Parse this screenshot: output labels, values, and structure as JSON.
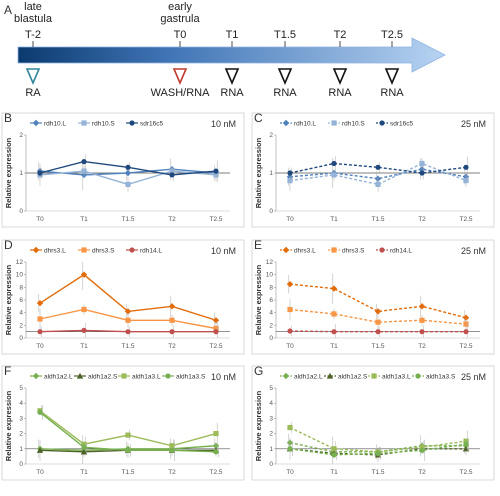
{
  "colors": {
    "blue": "#4f81bd",
    "blue_light": "#95b3d7",
    "blue_dark": "#1f497d",
    "orange": "#e26b0a",
    "orange_light": "#f79646",
    "orange_dark": "#c0504d",
    "green": "#77b050",
    "green_light": "#9bbb59",
    "green_dark": "#4f6228",
    "teal": "#31859c",
    "red": "#c0392b",
    "arrow": "#8db3e2"
  },
  "timeline": {
    "panel_letter": "A",
    "stages": [
      {
        "label": "late\nblastula",
        "time": "T-2"
      },
      {
        "label": "early\ngastrula",
        "time": "T0"
      },
      {
        "label": "",
        "time": "T1"
      },
      {
        "label": "",
        "time": "T1.5"
      },
      {
        "label": "",
        "time": "T2"
      },
      {
        "label": "",
        "time": "T2.5"
      }
    ],
    "treatments": [
      {
        "label": "RA",
        "at": "T-2",
        "icon": "teal-triangle-icon"
      },
      {
        "label": "WASH/RNA",
        "at": "T0",
        "icon": "red-triangle-icon"
      },
      {
        "label": "RNA",
        "at": "T1",
        "icon": "black-triangle-icon"
      },
      {
        "label": "RNA",
        "at": "T1.5",
        "icon": "black-triangle-icon"
      },
      {
        "label": "RNA",
        "at": "T2",
        "icon": "black-triangle-icon"
      },
      {
        "label": "RNA",
        "at": "T2.5",
        "icon": "black-triangle-icon"
      }
    ]
  },
  "chart_data": [
    {
      "panel": "B",
      "type": "line",
      "conc": "10 nM",
      "ylabel": "Relative expression",
      "ylim": [
        0,
        2
      ],
      "yticks": [
        0,
        1,
        2
      ],
      "categories": [
        "T0",
        "T1",
        "T1.5",
        "T2",
        "T2.5"
      ],
      "series": [
        {
          "name": "rdh10.L",
          "values": [
            1.05,
            0.95,
            1.0,
            1.1,
            1.0
          ],
          "color_key": "blue",
          "dash": false,
          "marker": "diamond"
        },
        {
          "name": "rdh10.S",
          "values": [
            0.95,
            1.05,
            0.7,
            1.05,
            0.95
          ],
          "color_key": "blue_light",
          "dash": false,
          "marker": "square"
        },
        {
          "name": "sdr16c5",
          "values": [
            1.0,
            1.3,
            1.15,
            0.95,
            1.05
          ],
          "color_key": "blue_dark",
          "dash": false,
          "marker": "circle"
        }
      ]
    },
    {
      "panel": "C",
      "type": "line",
      "conc": "25 nM",
      "ylabel": "Relative expression",
      "ylim": [
        0,
        2
      ],
      "yticks": [
        0,
        1,
        2
      ],
      "categories": [
        "T0",
        "T1",
        "T1.5",
        "T2",
        "T2.5"
      ],
      "series": [
        {
          "name": "rdh10.L",
          "values": [
            0.9,
            1.0,
            0.85,
            1.1,
            0.9
          ],
          "color_key": "blue",
          "dash": true,
          "marker": "diamond"
        },
        {
          "name": "rdh10.S",
          "values": [
            0.8,
            0.95,
            0.7,
            1.25,
            0.8
          ],
          "color_key": "blue_light",
          "dash": true,
          "marker": "square"
        },
        {
          "name": "sdr16c5",
          "values": [
            1.0,
            1.25,
            1.15,
            1.0,
            1.15
          ],
          "color_key": "blue_dark",
          "dash": true,
          "marker": "circle"
        }
      ]
    },
    {
      "panel": "D",
      "type": "line",
      "conc": "10 nM",
      "ylabel": "Relative expression",
      "ylim": [
        0,
        12
      ],
      "yticks": [
        0,
        2,
        4,
        6,
        8,
        10,
        12
      ],
      "categories": [
        "T0",
        "T1",
        "T1.5",
        "T2",
        "T2.5"
      ],
      "series": [
        {
          "name": "dhrs3.L",
          "values": [
            5.5,
            10.0,
            4.2,
            5.0,
            2.8
          ],
          "color_key": "orange",
          "dash": false,
          "marker": "diamond"
        },
        {
          "name": "dhrs3.S",
          "values": [
            3.0,
            4.5,
            2.8,
            2.8,
            1.5
          ],
          "color_key": "orange_light",
          "dash": false,
          "marker": "square"
        },
        {
          "name": "rdh14.L",
          "values": [
            1.0,
            1.2,
            1.0,
            1.0,
            1.0
          ],
          "color_key": "orange_dark",
          "dash": false,
          "marker": "circle"
        }
      ]
    },
    {
      "panel": "E",
      "type": "line",
      "conc": "25 nM",
      "ylabel": "Relative expression",
      "ylim": [
        0,
        12
      ],
      "yticks": [
        0,
        2,
        4,
        6,
        8,
        10,
        12
      ],
      "categories": [
        "T0",
        "T1",
        "T1.5",
        "T2",
        "T2.5"
      ],
      "series": [
        {
          "name": "dhrs3.L",
          "values": [
            8.5,
            7.8,
            4.2,
            5.0,
            3.2
          ],
          "color_key": "orange",
          "dash": true,
          "marker": "diamond"
        },
        {
          "name": "dhrs3.S",
          "values": [
            4.5,
            3.8,
            2.5,
            2.8,
            2.2
          ],
          "color_key": "orange_light",
          "dash": true,
          "marker": "square"
        },
        {
          "name": "rdh14.L",
          "values": [
            1.1,
            1.0,
            1.0,
            1.0,
            1.0
          ],
          "color_key": "orange_dark",
          "dash": true,
          "marker": "circle"
        }
      ]
    },
    {
      "panel": "F",
      "type": "line",
      "conc": "10 nM",
      "ylabel": "Relative expression",
      "ylim": [
        0,
        5
      ],
      "yticks": [
        0,
        1,
        2,
        3,
        4,
        5
      ],
      "categories": [
        "T0",
        "T1",
        "T1.5",
        "T2",
        "T2.5"
      ],
      "series": [
        {
          "name": "aldh1a2.L",
          "values": [
            1.0,
            0.9,
            1.0,
            1.0,
            1.2
          ],
          "color_key": "green",
          "dash": false,
          "marker": "diamond"
        },
        {
          "name": "aldh1a2.S",
          "values": [
            0.9,
            0.8,
            0.9,
            0.9,
            0.9
          ],
          "color_key": "green_dark",
          "dash": false,
          "marker": "triangle"
        },
        {
          "name": "aldh1a3.L",
          "values": [
            3.5,
            1.3,
            1.9,
            1.2,
            2.0
          ],
          "color_key": "green_light",
          "dash": false,
          "marker": "square"
        },
        {
          "name": "aldh1a3.S",
          "values": [
            3.4,
            1.1,
            0.9,
            0.9,
            0.8
          ],
          "color_key": "green",
          "dash": false,
          "marker": "circle"
        }
      ]
    },
    {
      "panel": "G",
      "type": "line",
      "conc": "25 nM",
      "ylabel": "Relative expression",
      "ylim": [
        0,
        5
      ],
      "yticks": [
        0,
        1,
        2,
        3,
        4,
        5
      ],
      "categories": [
        "T0",
        "T1",
        "T1.5",
        "T2",
        "T2.5"
      ],
      "series": [
        {
          "name": "aldh1a2.L",
          "values": [
            1.4,
            0.8,
            0.8,
            1.2,
            1.2
          ],
          "color_key": "green",
          "dash": true,
          "marker": "diamond"
        },
        {
          "name": "aldh1a2.S",
          "values": [
            1.0,
            0.7,
            0.6,
            1.0,
            1.0
          ],
          "color_key": "green_dark",
          "dash": true,
          "marker": "triangle"
        },
        {
          "name": "aldh1a3.L",
          "values": [
            2.4,
            1.0,
            0.8,
            1.1,
            1.5
          ],
          "color_key": "green_light",
          "dash": true,
          "marker": "square"
        },
        {
          "name": "aldh1a3.S",
          "values": [
            1.0,
            0.6,
            0.7,
            0.9,
            1.3
          ],
          "color_key": "green",
          "dash": true,
          "marker": "circle"
        }
      ]
    }
  ]
}
